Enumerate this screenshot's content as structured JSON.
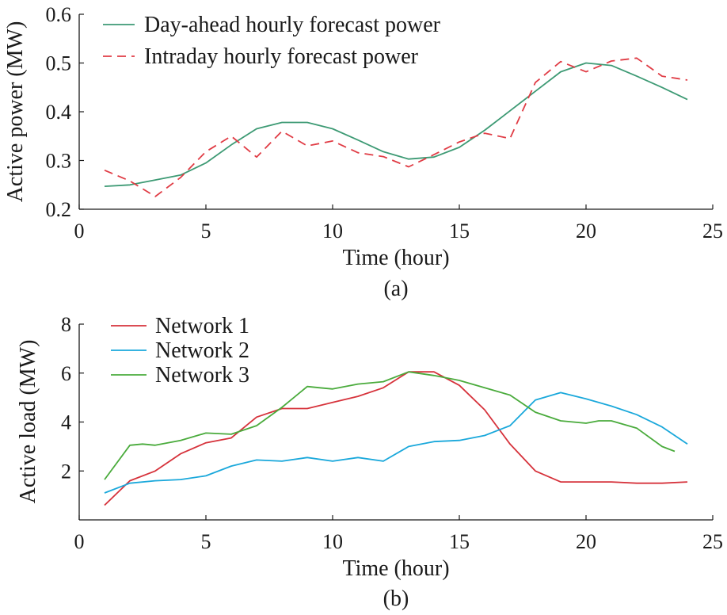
{
  "chart_data": [
    {
      "type": "line",
      "caption": "(a)",
      "xlabel": "Time (hour)",
      "ylabel": "Active power (MW)",
      "xlim": [
        0,
        25
      ],
      "ylim": [
        0.2,
        0.6
      ],
      "xticks": [
        0,
        5,
        10,
        15,
        20,
        25
      ],
      "yticks": [
        0.2,
        0.3,
        0.4,
        0.5,
        0.6
      ],
      "xtick_labels": [
        "0",
        "5",
        "10",
        "15",
        "20",
        "25"
      ],
      "ytick_labels": [
        "0.2",
        "0.3",
        "0.4",
        "0.5",
        "0.6"
      ],
      "grid": false,
      "legend_position": "top-left",
      "series": [
        {
          "name": "Day-ahead hourly forecast power",
          "color": "#3d9a74",
          "dash": "solid",
          "x": [
            1,
            2,
            3,
            4,
            5,
            6,
            7,
            8,
            9,
            10,
            11,
            12,
            13,
            14,
            15,
            16,
            17,
            18,
            19,
            20,
            21,
            22,
            23,
            24
          ],
          "values": [
            0.247,
            0.25,
            0.26,
            0.27,
            0.295,
            0.332,
            0.365,
            0.378,
            0.378,
            0.365,
            0.342,
            0.318,
            0.303,
            0.307,
            0.327,
            0.362,
            0.402,
            0.442,
            0.482,
            0.5,
            0.495,
            0.473,
            0.45,
            0.425
          ]
        },
        {
          "name": "Intraday hourly forecast power",
          "color": "#e03c45",
          "dash": "dashed",
          "x": [
            1,
            2,
            3,
            4,
            5,
            6,
            7,
            8,
            9,
            10,
            11,
            12,
            13,
            14,
            15,
            16,
            17,
            18,
            19,
            20,
            21,
            22,
            23,
            24
          ],
          "values": [
            0.28,
            0.258,
            0.226,
            0.265,
            0.318,
            0.35,
            0.307,
            0.36,
            0.33,
            0.34,
            0.316,
            0.308,
            0.287,
            0.312,
            0.338,
            0.356,
            0.345,
            0.46,
            0.503,
            0.482,
            0.504,
            0.51,
            0.473,
            0.465
          ]
        }
      ]
    },
    {
      "type": "line",
      "caption": "(b)",
      "xlabel": "Time (hour)",
      "ylabel": "Active load (MW)",
      "xlim": [
        0,
        25
      ],
      "ylim": [
        0,
        8
      ],
      "xticks": [
        0,
        5,
        10,
        15,
        20,
        25
      ],
      "yticks": [
        2,
        4,
        6,
        8
      ],
      "xtick_labels": [
        "0",
        "5",
        "10",
        "15",
        "20",
        "25"
      ],
      "ytick_labels": [
        "2",
        "4",
        "6",
        "8"
      ],
      "grid": false,
      "legend_position": "top-left",
      "series": [
        {
          "name": "Network 1",
          "color": "#d6323b",
          "dash": "solid",
          "x": [
            1,
            2,
            3,
            4,
            5,
            6,
            7,
            8,
            9,
            10,
            11,
            12,
            13,
            14,
            15,
            16,
            17,
            18,
            19,
            20,
            21,
            22,
            23,
            24
          ],
          "values": [
            0.6,
            1.6,
            2.0,
            2.7,
            3.15,
            3.35,
            4.2,
            4.55,
            4.55,
            4.8,
            5.05,
            5.4,
            6.05,
            6.05,
            5.5,
            4.5,
            3.1,
            2.0,
            1.55,
            1.55,
            1.55,
            1.5,
            1.5,
            1.55
          ]
        },
        {
          "name": "Network 2",
          "color": "#1aa8db",
          "dash": "solid",
          "x": [
            1,
            2,
            3,
            4,
            5,
            6,
            7,
            8,
            9,
            10,
            11,
            12,
            13,
            14,
            15,
            16,
            17,
            18,
            19,
            20,
            21,
            22,
            23,
            24
          ],
          "values": [
            1.1,
            1.5,
            1.6,
            1.65,
            1.8,
            2.2,
            2.45,
            2.4,
            2.55,
            2.4,
            2.55,
            2.4,
            3.0,
            3.2,
            3.25,
            3.45,
            3.85,
            4.9,
            5.2,
            4.95,
            4.65,
            4.3,
            3.8,
            3.1
          ]
        },
        {
          "name": "Network 3",
          "color": "#4aab3c",
          "dash": "solid",
          "x": [
            1,
            2,
            2.5,
            3,
            4,
            5,
            6,
            7,
            8,
            9,
            9.5,
            10,
            11,
            12,
            13,
            14,
            15,
            16,
            17,
            18,
            19,
            20,
            20.5,
            21,
            22,
            23,
            23.5
          ],
          "values": [
            1.65,
            3.05,
            3.1,
            3.05,
            3.25,
            3.55,
            3.5,
            3.85,
            4.6,
            5.45,
            5.4,
            5.35,
            5.55,
            5.65,
            6.05,
            5.9,
            5.7,
            5.4,
            5.1,
            4.4,
            4.05,
            3.95,
            4.05,
            4.05,
            3.75,
            3.0,
            2.8
          ]
        }
      ]
    }
  ]
}
